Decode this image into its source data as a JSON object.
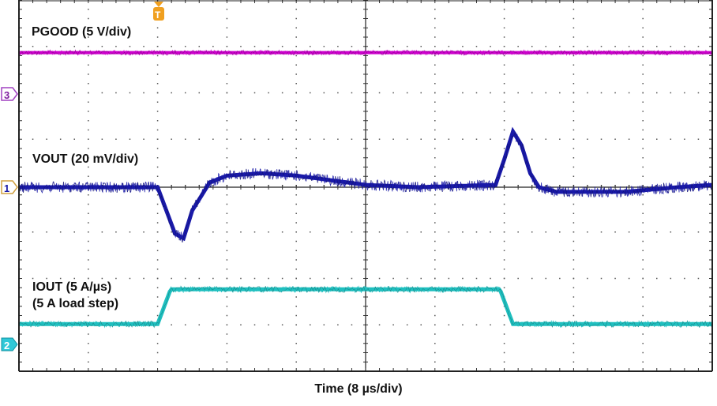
{
  "chart_data": {
    "type": "line",
    "title": "",
    "xlabel": "Time (8 µs/div)",
    "ylabel": "",
    "grid": true,
    "grid_divisions": {
      "x": 10,
      "y": 8
    },
    "time_per_div_us": 8,
    "trigger_marker": "T",
    "x_unit": "µs",
    "x_range": [
      -40,
      40
    ],
    "series": [
      {
        "name": "PGOOD (5 V/div)",
        "channel": 3,
        "color": "#cc00cc",
        "description": "Constant high level throughout",
        "x": [
          -40,
          40
        ],
        "y_div": [
          2.9,
          2.9
        ]
      },
      {
        "name": "VOUT (20 mV/div)",
        "channel": 1,
        "color": "#1a1aa8",
        "description": "Undershoot on load step-up (~-1.1 div ≈ -22 mV), overshoot on load step-down (~+1.2 div ≈ +24 mV)",
        "x": [
          -40,
          -24,
          -23,
          -22,
          -21,
          -20,
          -18,
          -16,
          -12,
          -8,
          -4,
          0,
          6,
          15,
          16,
          17,
          18,
          19,
          20,
          22,
          24,
          30,
          36,
          40
        ],
        "y_div": [
          0.0,
          0.0,
          -0.5,
          -1.0,
          -1.1,
          -0.5,
          0.1,
          0.25,
          0.3,
          0.25,
          0.15,
          0.05,
          0.0,
          0.05,
          0.6,
          1.2,
          0.9,
          0.3,
          0.0,
          -0.1,
          -0.1,
          -0.1,
          0.0,
          0.05
        ]
      },
      {
        "name": "IOUT (5 A/µs) (5 A load step)",
        "channel": 2,
        "color": "#1fbfbf",
        "description": "5 A step up at ~-24 µs, step down at ~16 µs",
        "x": [
          -40,
          -24,
          -22.5,
          15.5,
          17,
          40
        ],
        "y_div": [
          -2.95,
          -2.95,
          -2.2,
          -2.2,
          -2.95,
          -2.95
        ]
      }
    ],
    "annotations": [
      "PGOOD (5 V/div)",
      "VOUT (20 mV/div)",
      "IOUT (5 A/µs)",
      "(5 A load step)"
    ]
  },
  "labels": {
    "pgood": "PGOOD (5 V/div)",
    "vout": "VOUT (20 mV/div)",
    "iout_line1": "IOUT (5 A/µs)",
    "iout_line2": "(5 A load step)",
    "xaxis": "Time (8 µs/div)"
  },
  "markers": {
    "ch1": "1",
    "ch2": "2",
    "ch3": "3",
    "trigger": "T"
  },
  "colors": {
    "pgood": "#cc00cc",
    "vout": "#1a1aa8",
    "iout": "#1fbfbf",
    "trigger": "#f0a020"
  }
}
